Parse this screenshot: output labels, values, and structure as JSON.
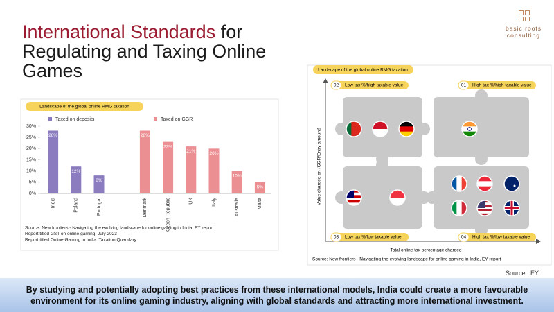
{
  "header": {
    "title_highlight": "International Standards",
    "title_rest": "for Regulating and Taxing Online Games",
    "logo": "basic roots consulting"
  },
  "chart_data": {
    "type": "bar",
    "title": "Landscape of the global online RMG taxation",
    "categories": [
      "India",
      "Poland",
      "Portugal",
      null,
      "Denmark",
      "Czech Republic",
      "UK",
      "Italy",
      "Australia",
      "Malta"
    ],
    "series": [
      {
        "name": "Taxed on deposits",
        "color": "#8b7cc0",
        "values": [
          28,
          12,
          8,
          null,
          null,
          null,
          null,
          null,
          null,
          null
        ],
        "value_labels": [
          "28%",
          "12%",
          "8%",
          null,
          null,
          null,
          null,
          null,
          null,
          null
        ]
      },
      {
        "name": "Taxed on GGR",
        "color": "#ec8f93",
        "values": [
          null,
          null,
          null,
          null,
          28,
          23,
          21,
          20,
          10,
          5
        ],
        "value_labels": [
          null,
          null,
          null,
          null,
          "28%",
          "23%",
          "21%",
          "20%",
          "10%",
          "5%"
        ]
      }
    ],
    "ylim": [
      0,
      30
    ],
    "yticks": [
      {
        "value": 0,
        "label": "0%"
      },
      {
        "value": 5,
        "label": "5%"
      },
      {
        "value": 10,
        "label": "10%"
      },
      {
        "value": 15,
        "label": "15%"
      },
      {
        "value": 20,
        "label": "20%"
      },
      {
        "value": 25,
        "label": "25%"
      },
      {
        "value": 30,
        "label": "30%"
      }
    ],
    "sources": [
      "Source: New frontiers - Navigating the evolving landscape for online gaming in India, EY report",
      "Report titled GST on online gaming, July 2023",
      "Report titled Online Gaming in India: Taxation Quandary"
    ]
  },
  "matrix": {
    "title": "Landscape of the global online RMG taxation",
    "quadrants": [
      {
        "number": "02",
        "label": "Low tax %/high taxable value"
      },
      {
        "number": "01",
        "label": "High tax %/high taxable value"
      },
      {
        "number": "03",
        "label": "Low tax %/low taxable value"
      },
      {
        "number": "04",
        "label": "High tax %/low taxable value"
      }
    ],
    "y_axis_label": "Value charged on (GGR/Entry amount)",
    "x_axis_label": "Total online tax percentage charged",
    "source": "Source: New frontiers - Navigating the evolving landscape for online gaming in India, EY report"
  },
  "source": "Source : EY",
  "banner": "By studying and potentially adopting best practices from these international models, India could create a more favourable environment for its online gaming industry, aligning with global standards and attracting more international investment."
}
